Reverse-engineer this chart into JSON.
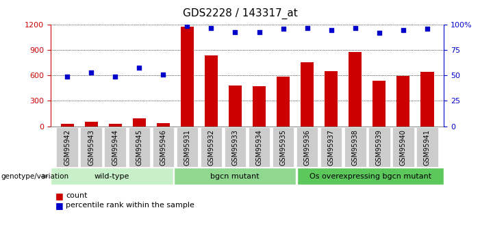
{
  "title": "GDS2228 / 143317_at",
  "samples": [
    "GSM95942",
    "GSM95943",
    "GSM95944",
    "GSM95945",
    "GSM95946",
    "GSM95931",
    "GSM95932",
    "GSM95933",
    "GSM95934",
    "GSM95935",
    "GSM95936",
    "GSM95937",
    "GSM95938",
    "GSM95939",
    "GSM95940",
    "GSM95941"
  ],
  "counts": [
    30,
    55,
    30,
    90,
    40,
    1175,
    840,
    480,
    475,
    590,
    760,
    650,
    880,
    540,
    595,
    645
  ],
  "percentile": [
    49,
    53,
    49,
    58,
    51,
    99,
    97,
    93,
    93,
    96,
    97,
    95,
    97,
    92,
    95,
    96
  ],
  "groups": [
    {
      "label": "wild-type",
      "start": 0,
      "end": 5,
      "color": "#c8f0c8"
    },
    {
      "label": "bgcn mutant",
      "start": 5,
      "end": 10,
      "color": "#90d890"
    },
    {
      "label": "Os overexpressing bgcn mutant",
      "start": 10,
      "end": 16,
      "color": "#5cc85c"
    }
  ],
  "bar_color": "#cc0000",
  "dot_color": "#0000cc",
  "left_axis_color": "#cc0000",
  "right_axis_color": "#0000cc",
  "ylim_left": [
    0,
    1200
  ],
  "ylim_right": [
    0,
    100
  ],
  "left_yticks": [
    0,
    300,
    600,
    900,
    1200
  ],
  "right_yticks": [
    0,
    25,
    50,
    75,
    100
  ],
  "right_yticklabels": [
    "0",
    "25",
    "50",
    "75",
    "100%"
  ],
  "bg_color": "#ffffff",
  "plot_bg_color": "#ffffff",
  "tick_bg_color": "#cccccc",
  "genotype_label": "genotype/variation",
  "legend_count_label": "count",
  "legend_pct_label": "percentile rank within the sample",
  "title_fontsize": 11,
  "tick_fontsize": 7,
  "group_fontsize": 8,
  "legend_fontsize": 8
}
